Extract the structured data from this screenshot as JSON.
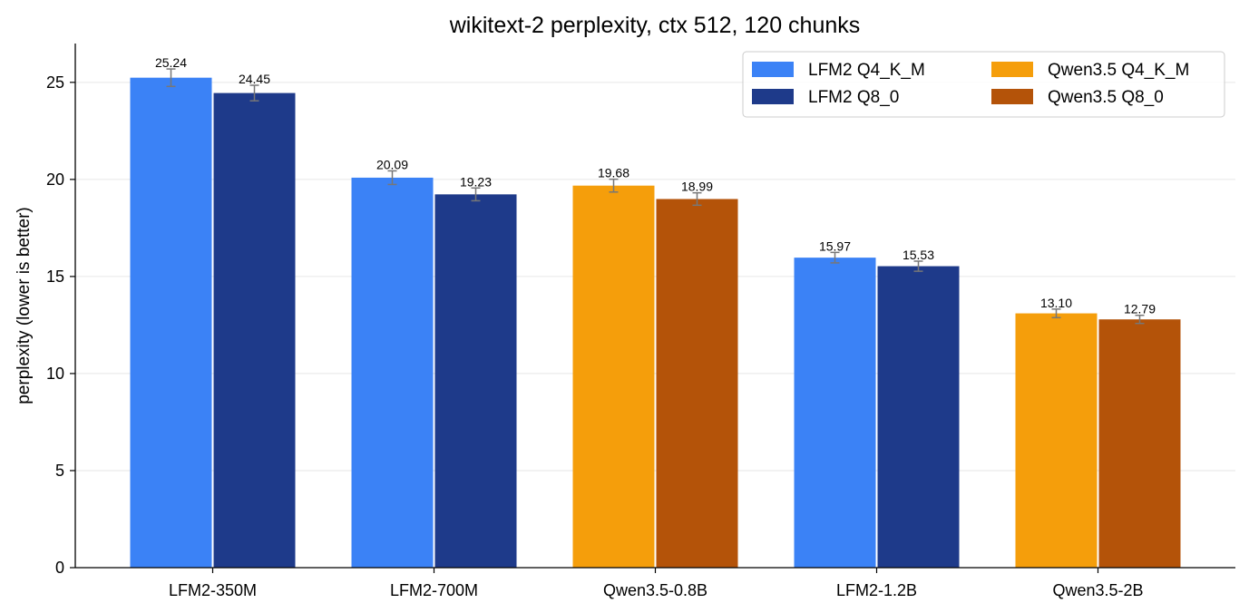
{
  "chart_data": {
    "type": "bar",
    "title": "wikitext-2 perplexity, ctx 512, 120 chunks",
    "xlabel": "",
    "ylabel": "perplexity (lower is better)",
    "ylim": [
      0,
      27
    ],
    "yticks": [
      0,
      5,
      10,
      15,
      20,
      25
    ],
    "grid": "horizontal",
    "legend_position": "top-right",
    "legend_entries": [
      {
        "label": "LFM2 Q4_K_M",
        "color": "#3b82f6"
      },
      {
        "label": "Qwen3.5 Q4_K_M",
        "color": "#f59e0b"
      },
      {
        "label": "LFM2 Q8_0",
        "color": "#1e3a8a"
      },
      {
        "label": "Qwen3.5 Q8_0",
        "color": "#b45309"
      }
    ],
    "groups": [
      {
        "category": "LFM2-350M",
        "bars": [
          {
            "series": "LFM2 Q4_K_M",
            "value": 25.24,
            "label": "25.24",
            "err": 0.45,
            "color": "#3b82f6"
          },
          {
            "series": "LFM2 Q8_0",
            "value": 24.45,
            "label": "24.45",
            "err": 0.4,
            "color": "#1e3a8a"
          }
        ]
      },
      {
        "category": "LFM2-700M",
        "bars": [
          {
            "series": "LFM2 Q4_K_M",
            "value": 20.09,
            "label": "20.09",
            "err": 0.35,
            "color": "#3b82f6"
          },
          {
            "series": "LFM2 Q8_0",
            "value": 19.23,
            "label": "19.23",
            "err": 0.33,
            "color": "#1e3a8a"
          }
        ]
      },
      {
        "category": "Qwen3.5-0.8B",
        "bars": [
          {
            "series": "Qwen3.5 Q4_K_M",
            "value": 19.68,
            "label": "19.68",
            "err": 0.33,
            "color": "#f59e0b"
          },
          {
            "series": "Qwen3.5 Q8_0",
            "value": 18.99,
            "label": "18.99",
            "err": 0.32,
            "color": "#b45309"
          }
        ]
      },
      {
        "category": "LFM2-1.2B",
        "bars": [
          {
            "series": "LFM2 Q4_K_M",
            "value": 15.97,
            "label": "15.97",
            "err": 0.27,
            "color": "#3b82f6"
          },
          {
            "series": "LFM2 Q8_0",
            "value": 15.53,
            "label": "15.53",
            "err": 0.26,
            "color": "#1e3a8a"
          }
        ]
      },
      {
        "category": "Qwen3.5-2B",
        "bars": [
          {
            "series": "Qwen3.5 Q4_K_M",
            "value": 13.1,
            "label": "13.10",
            "err": 0.22,
            "color": "#f59e0b"
          },
          {
            "series": "Qwen3.5 Q8_0",
            "value": 12.79,
            "label": "12.79",
            "err": 0.21,
            "color": "#b45309"
          }
        ]
      }
    ],
    "colors": {
      "error_bar": "#777777",
      "grid": "#e6e6e6",
      "axis": "#000000"
    }
  }
}
